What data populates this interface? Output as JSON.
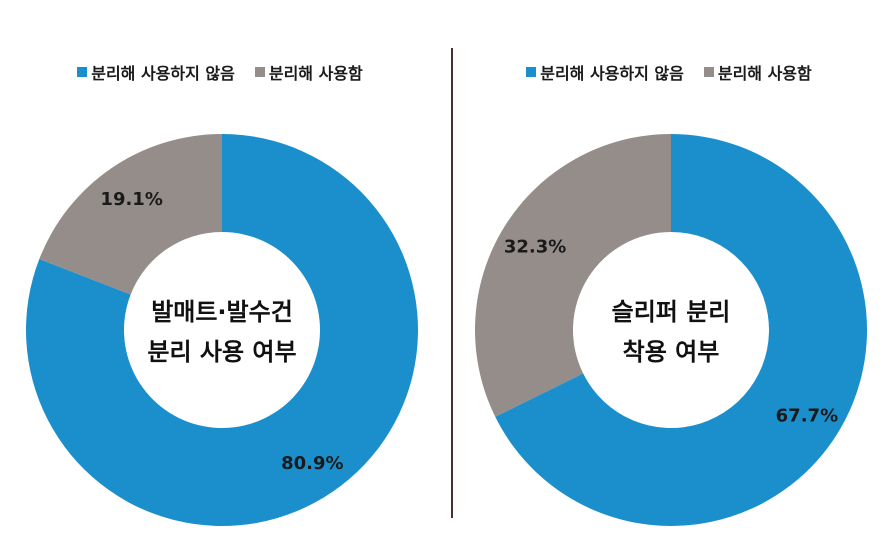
{
  "colors": {
    "blue": "#1a8fcc",
    "gray": "#958d89"
  },
  "chart_data": [
    {
      "type": "pie",
      "donut": true,
      "center_label": [
        "발매트·발수건",
        "분리 사용 여부"
      ],
      "legend_position": "top",
      "series": [
        {
          "name": "분리해 사용하지 않음",
          "value": 80.9,
          "label": "80.9%",
          "color": "#1a8fcc"
        },
        {
          "name": "분리해 사용함",
          "value": 19.1,
          "label": "19.1%",
          "color": "#958d89"
        }
      ]
    },
    {
      "type": "pie",
      "donut": true,
      "center_label": [
        "슬리퍼 분리",
        "착용 여부"
      ],
      "legend_position": "top",
      "series": [
        {
          "name": "분리해 사용하지 않음",
          "value": 67.7,
          "label": "67.7%",
          "color": "#1a8fcc"
        },
        {
          "name": "분리해 사용함",
          "value": 32.3,
          "label": "32.3%",
          "color": "#958d89"
        }
      ]
    }
  ]
}
